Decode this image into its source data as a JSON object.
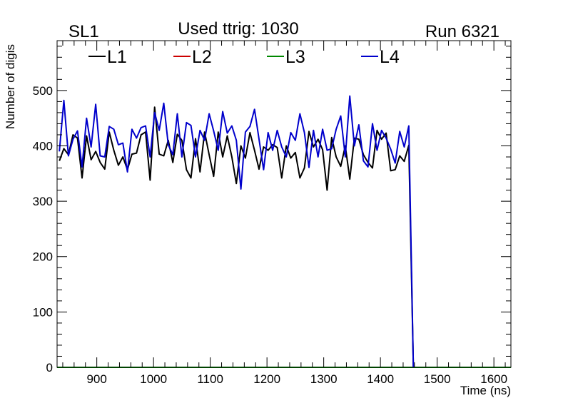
{
  "chart_data": {
    "type": "line",
    "title_left": "SL1",
    "title_center": "Used ttrig: 1030",
    "title_right": "Run 6321",
    "xlabel": "Time (ns)",
    "ylabel": "Number of digis",
    "xlim": [
      830,
      1630
    ],
    "ylim": [
      0,
      590
    ],
    "xticks": [
      900,
      1000,
      1100,
      1200,
      1300,
      1400,
      1500,
      1600
    ],
    "yticks": [
      0,
      100,
      200,
      300,
      400,
      500
    ],
    "bin_width": 8,
    "x_start": 834,
    "series": [
      {
        "name": "L1",
        "color": "#000000",
        "values": [
          373,
          395,
          384,
          420,
          414,
          342,
          418,
          375,
          390,
          370,
          358,
          425,
          392,
          365,
          380,
          357,
          385,
          387,
          420,
          425,
          338,
          470,
          385,
          382,
          410,
          370,
          421,
          410,
          357,
          342,
          413,
          353,
          425,
          384,
          345,
          425,
          380,
          418,
          380,
          332,
          400,
          378,
          424,
          392,
          358,
          398,
          392,
          402,
          397,
          342,
          400,
          378,
          388,
          342,
          360,
          426,
          398,
          412,
          393,
          320,
          415,
          380,
          363,
          400,
          340,
          414,
          412,
          384,
          370,
          360,
          428,
          412,
          423,
          355,
          357,
          382,
          372,
          401,
          0
        ]
      },
      {
        "name": "L2",
        "color": "#cc0000",
        "values": []
      },
      {
        "name": "L3",
        "color": "#008800",
        "values": [
          0,
          0
        ]
      },
      {
        "name": "L4",
        "color": "#0000cc",
        "values": [
          390,
          482,
          382,
          412,
          427,
          362,
          450,
          398,
          475,
          382,
          380,
          435,
          430,
          402,
          405,
          353,
          430,
          414,
          433,
          436,
          380,
          460,
          428,
          477,
          402,
          384,
          458,
          380,
          442,
          437,
          380,
          428,
          410,
          458,
          427,
          392,
          462,
          423,
          436,
          410,
          322,
          425,
          435,
          466,
          412,
          357,
          424,
          392,
          428,
          398,
          380,
          424,
          410,
          458,
          424,
          361,
          428,
          380,
          430,
          392,
          395,
          430,
          454,
          380,
          490,
          400,
          438,
          373,
          362,
          440,
          392,
          428,
          414,
          394,
          369,
          426,
          398,
          436,
          0
        ]
      }
    ]
  }
}
